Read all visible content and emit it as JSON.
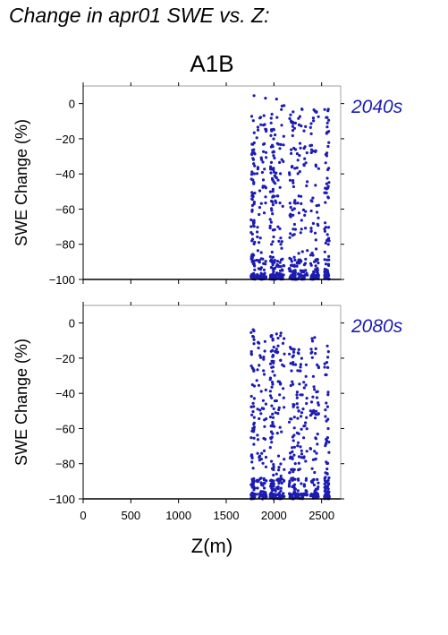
{
  "figure_title": "Change in apr01 SWE vs. Z:",
  "scenario_label": "A1B",
  "x_axis_label": "Z(m)",
  "y_axis_label": "SWE Change (%)",
  "colors": {
    "points": "#1c1cb4",
    "period_label": "#1c1cb4",
    "axes": "#000000"
  },
  "chart_data": [
    {
      "type": "scatter",
      "period": "2040s",
      "xlabel": "",
      "ylabel": "SWE Change (%)",
      "xlim": [
        0,
        2700
      ],
      "ylim": [
        -100,
        10
      ],
      "x_ticks": [
        0,
        500,
        1000,
        1500,
        2000,
        2500
      ],
      "y_ticks": [
        0,
        -20,
        -40,
        -60,
        -80,
        -100
      ],
      "y_tick_labels": [
        "0",
        "−20",
        "−40",
        "−60",
        "−80",
        "−100"
      ],
      "x_tick_labels_shown": false,
      "grid": false,
      "point_clusters": [
        {
          "z_range": [
            1760,
            1800
          ],
          "swe_range": [
            -100,
            5
          ]
        },
        {
          "z_range": [
            1820,
            1920
          ],
          "swe_range": [
            -100,
            7
          ]
        },
        {
          "z_range": [
            1960,
            2000
          ],
          "swe_range": [
            -100,
            -5
          ]
        },
        {
          "z_range": [
            2000,
            2110
          ],
          "swe_range": [
            -100,
            3
          ]
        },
        {
          "z_range": [
            2160,
            2230
          ],
          "swe_range": [
            -100,
            -1
          ]
        },
        {
          "z_range": [
            2240,
            2350
          ],
          "swe_range": [
            -100,
            -2
          ]
        },
        {
          "z_range": [
            2380,
            2470
          ],
          "swe_range": [
            -100,
            0
          ]
        },
        {
          "z_range": [
            2530,
            2580
          ],
          "swe_range": [
            -100,
            -2
          ]
        }
      ]
    },
    {
      "type": "scatter",
      "period": "2080s",
      "xlabel": "Z(m)",
      "ylabel": "SWE Change (%)",
      "xlim": [
        0,
        2700
      ],
      "ylim": [
        -100,
        10
      ],
      "x_ticks": [
        0,
        500,
        1000,
        1500,
        2000,
        2500
      ],
      "x_tick_labels": [
        "0",
        "500",
        "1000",
        "1500",
        "2000",
        "2500"
      ],
      "y_ticks": [
        0,
        -20,
        -40,
        -60,
        -80,
        -100
      ],
      "y_tick_labels": [
        "0",
        "−20",
        "−40",
        "−60",
        "−80",
        "−100"
      ],
      "grid": false,
      "point_clusters": [
        {
          "z_range": [
            1760,
            1800
          ],
          "swe_range": [
            -100,
            -3
          ]
        },
        {
          "z_range": [
            1820,
            1920
          ],
          "swe_range": [
            -100,
            -8
          ]
        },
        {
          "z_range": [
            1960,
            2000
          ],
          "swe_range": [
            -100,
            -5
          ]
        },
        {
          "z_range": [
            2000,
            2110
          ],
          "swe_range": [
            -100,
            -3
          ]
        },
        {
          "z_range": [
            2160,
            2230
          ],
          "swe_range": [
            -100,
            -10
          ]
        },
        {
          "z_range": [
            2240,
            2350
          ],
          "swe_range": [
            -100,
            -12
          ]
        },
        {
          "z_range": [
            2380,
            2470
          ],
          "swe_range": [
            -100,
            -8
          ]
        },
        {
          "z_range": [
            2530,
            2580
          ],
          "swe_range": [
            -100,
            -12
          ]
        }
      ]
    }
  ]
}
